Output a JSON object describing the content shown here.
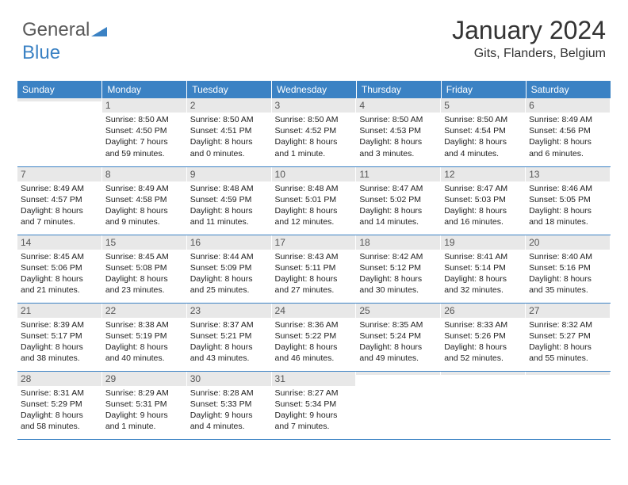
{
  "logo": {
    "part1": "General",
    "part2": "Blue"
  },
  "header": {
    "month_title": "January 2024",
    "location": "Gits, Flanders, Belgium"
  },
  "theme": {
    "header_bg": "#3b82c4",
    "header_text": "#ffffff",
    "daynum_bg": "#e8e8e8",
    "daynum_text": "#555555",
    "body_text": "#222222",
    "row_border": "#3b82c4",
    "page_bg": "#ffffff",
    "title_color": "#333333"
  },
  "day_headers": [
    "Sunday",
    "Monday",
    "Tuesday",
    "Wednesday",
    "Thursday",
    "Friday",
    "Saturday"
  ],
  "weeks": [
    [
      {
        "n": "",
        "sunrise": "",
        "sunset": "",
        "daylight": ""
      },
      {
        "n": "1",
        "sunrise": "Sunrise: 8:50 AM",
        "sunset": "Sunset: 4:50 PM",
        "daylight": "Daylight: 7 hours and 59 minutes."
      },
      {
        "n": "2",
        "sunrise": "Sunrise: 8:50 AM",
        "sunset": "Sunset: 4:51 PM",
        "daylight": "Daylight: 8 hours and 0 minutes."
      },
      {
        "n": "3",
        "sunrise": "Sunrise: 8:50 AM",
        "sunset": "Sunset: 4:52 PM",
        "daylight": "Daylight: 8 hours and 1 minute."
      },
      {
        "n": "4",
        "sunrise": "Sunrise: 8:50 AM",
        "sunset": "Sunset: 4:53 PM",
        "daylight": "Daylight: 8 hours and 3 minutes."
      },
      {
        "n": "5",
        "sunrise": "Sunrise: 8:50 AM",
        "sunset": "Sunset: 4:54 PM",
        "daylight": "Daylight: 8 hours and 4 minutes."
      },
      {
        "n": "6",
        "sunrise": "Sunrise: 8:49 AM",
        "sunset": "Sunset: 4:56 PM",
        "daylight": "Daylight: 8 hours and 6 minutes."
      }
    ],
    [
      {
        "n": "7",
        "sunrise": "Sunrise: 8:49 AM",
        "sunset": "Sunset: 4:57 PM",
        "daylight": "Daylight: 8 hours and 7 minutes."
      },
      {
        "n": "8",
        "sunrise": "Sunrise: 8:49 AM",
        "sunset": "Sunset: 4:58 PM",
        "daylight": "Daylight: 8 hours and 9 minutes."
      },
      {
        "n": "9",
        "sunrise": "Sunrise: 8:48 AM",
        "sunset": "Sunset: 4:59 PM",
        "daylight": "Daylight: 8 hours and 11 minutes."
      },
      {
        "n": "10",
        "sunrise": "Sunrise: 8:48 AM",
        "sunset": "Sunset: 5:01 PM",
        "daylight": "Daylight: 8 hours and 12 minutes."
      },
      {
        "n": "11",
        "sunrise": "Sunrise: 8:47 AM",
        "sunset": "Sunset: 5:02 PM",
        "daylight": "Daylight: 8 hours and 14 minutes."
      },
      {
        "n": "12",
        "sunrise": "Sunrise: 8:47 AM",
        "sunset": "Sunset: 5:03 PM",
        "daylight": "Daylight: 8 hours and 16 minutes."
      },
      {
        "n": "13",
        "sunrise": "Sunrise: 8:46 AM",
        "sunset": "Sunset: 5:05 PM",
        "daylight": "Daylight: 8 hours and 18 minutes."
      }
    ],
    [
      {
        "n": "14",
        "sunrise": "Sunrise: 8:45 AM",
        "sunset": "Sunset: 5:06 PM",
        "daylight": "Daylight: 8 hours and 21 minutes."
      },
      {
        "n": "15",
        "sunrise": "Sunrise: 8:45 AM",
        "sunset": "Sunset: 5:08 PM",
        "daylight": "Daylight: 8 hours and 23 minutes."
      },
      {
        "n": "16",
        "sunrise": "Sunrise: 8:44 AM",
        "sunset": "Sunset: 5:09 PM",
        "daylight": "Daylight: 8 hours and 25 minutes."
      },
      {
        "n": "17",
        "sunrise": "Sunrise: 8:43 AM",
        "sunset": "Sunset: 5:11 PM",
        "daylight": "Daylight: 8 hours and 27 minutes."
      },
      {
        "n": "18",
        "sunrise": "Sunrise: 8:42 AM",
        "sunset": "Sunset: 5:12 PM",
        "daylight": "Daylight: 8 hours and 30 minutes."
      },
      {
        "n": "19",
        "sunrise": "Sunrise: 8:41 AM",
        "sunset": "Sunset: 5:14 PM",
        "daylight": "Daylight: 8 hours and 32 minutes."
      },
      {
        "n": "20",
        "sunrise": "Sunrise: 8:40 AM",
        "sunset": "Sunset: 5:16 PM",
        "daylight": "Daylight: 8 hours and 35 minutes."
      }
    ],
    [
      {
        "n": "21",
        "sunrise": "Sunrise: 8:39 AM",
        "sunset": "Sunset: 5:17 PM",
        "daylight": "Daylight: 8 hours and 38 minutes."
      },
      {
        "n": "22",
        "sunrise": "Sunrise: 8:38 AM",
        "sunset": "Sunset: 5:19 PM",
        "daylight": "Daylight: 8 hours and 40 minutes."
      },
      {
        "n": "23",
        "sunrise": "Sunrise: 8:37 AM",
        "sunset": "Sunset: 5:21 PM",
        "daylight": "Daylight: 8 hours and 43 minutes."
      },
      {
        "n": "24",
        "sunrise": "Sunrise: 8:36 AM",
        "sunset": "Sunset: 5:22 PM",
        "daylight": "Daylight: 8 hours and 46 minutes."
      },
      {
        "n": "25",
        "sunrise": "Sunrise: 8:35 AM",
        "sunset": "Sunset: 5:24 PM",
        "daylight": "Daylight: 8 hours and 49 minutes."
      },
      {
        "n": "26",
        "sunrise": "Sunrise: 8:33 AM",
        "sunset": "Sunset: 5:26 PM",
        "daylight": "Daylight: 8 hours and 52 minutes."
      },
      {
        "n": "27",
        "sunrise": "Sunrise: 8:32 AM",
        "sunset": "Sunset: 5:27 PM",
        "daylight": "Daylight: 8 hours and 55 minutes."
      }
    ],
    [
      {
        "n": "28",
        "sunrise": "Sunrise: 8:31 AM",
        "sunset": "Sunset: 5:29 PM",
        "daylight": "Daylight: 8 hours and 58 minutes."
      },
      {
        "n": "29",
        "sunrise": "Sunrise: 8:29 AM",
        "sunset": "Sunset: 5:31 PM",
        "daylight": "Daylight: 9 hours and 1 minute."
      },
      {
        "n": "30",
        "sunrise": "Sunrise: 8:28 AM",
        "sunset": "Sunset: 5:33 PM",
        "daylight": "Daylight: 9 hours and 4 minutes."
      },
      {
        "n": "31",
        "sunrise": "Sunrise: 8:27 AM",
        "sunset": "Sunset: 5:34 PM",
        "daylight": "Daylight: 9 hours and 7 minutes."
      },
      {
        "n": "",
        "sunrise": "",
        "sunset": "",
        "daylight": ""
      },
      {
        "n": "",
        "sunrise": "",
        "sunset": "",
        "daylight": ""
      },
      {
        "n": "",
        "sunrise": "",
        "sunset": "",
        "daylight": ""
      }
    ]
  ]
}
